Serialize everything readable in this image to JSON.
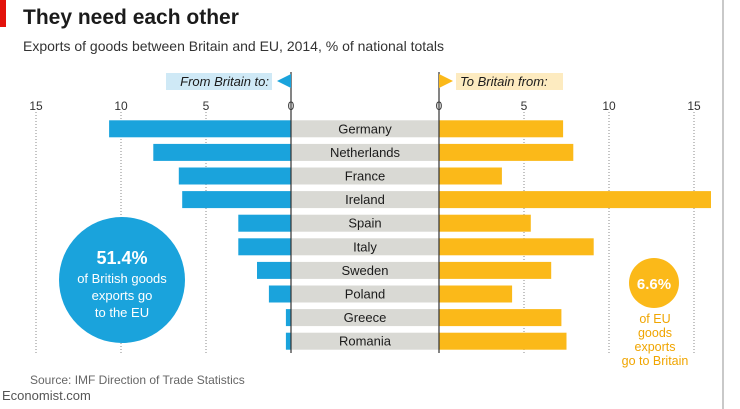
{
  "header": {
    "title": "They need each other",
    "subtitle": "Exports of goods between Britain and EU, 2014, % of national totals"
  },
  "colors": {
    "left": "#1aa3dc",
    "right": "#fbb919",
    "center": "#d9d9d4",
    "accent": "#e3120b"
  },
  "chart_data": {
    "type": "bar",
    "categories": [
      "Germany",
      "Netherlands",
      "France",
      "Ireland",
      "Spain",
      "Italy",
      "Sweden",
      "Poland",
      "Greece",
      "Romania"
    ],
    "series": [
      {
        "name": "From Britain to:",
        "values": [
          10.7,
          8.1,
          6.6,
          6.4,
          3.1,
          3.1,
          2.0,
          1.3,
          0.3,
          0.3
        ]
      },
      {
        "name": "To Britain from:",
        "values": [
          7.3,
          7.9,
          3.7,
          16.0,
          5.4,
          9.1,
          6.6,
          4.3,
          7.2,
          7.5
        ]
      }
    ],
    "left_axis": {
      "range": [
        15,
        0
      ],
      "ticks": [
        "15",
        "10",
        "5",
        "0"
      ]
    },
    "right_axis": {
      "range": [
        0,
        15
      ],
      "ticks": [
        "0",
        "5",
        "10",
        "15"
      ]
    },
    "grid": true,
    "annotations": {
      "left": [
        "51.4%",
        "of British goods",
        "exports go",
        "to the EU"
      ],
      "right_value": "6.6%",
      "right_text": [
        "of EU",
        "goods",
        "exports",
        "go to Britain"
      ]
    }
  },
  "footer": {
    "source": "Source: IMF Direction of Trade Statistics",
    "brand": "Economist.com"
  }
}
